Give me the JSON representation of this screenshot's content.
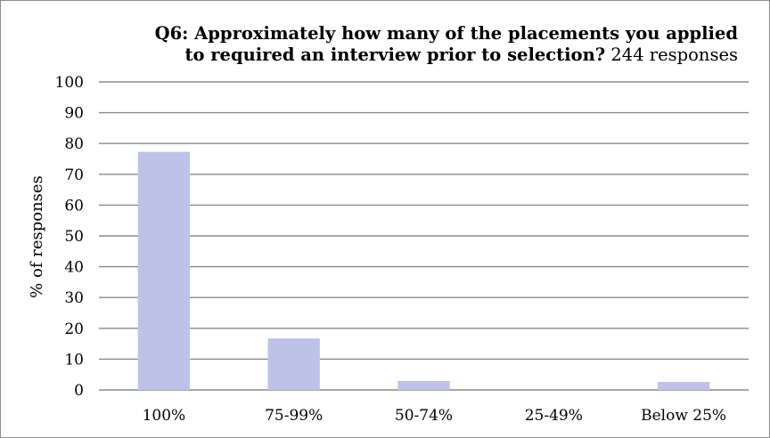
{
  "chart_data": {
    "type": "bar",
    "title": "Q6: Approximately how many of the placements you applied",
    "title_line2": "to required an interview prior to selection?",
    "subtitle": "244 responses",
    "xlabel": "",
    "ylabel": "% of responses",
    "categories": [
      "100%",
      "75-99%",
      "50-74%",
      "25-49%",
      "Below 25%"
    ],
    "values": [
      77.3,
      16.7,
      2.9,
      0,
      2.6
    ],
    "ylim": [
      0,
      100
    ],
    "yticks": [
      0,
      10,
      20,
      30,
      40,
      50,
      60,
      70,
      80,
      90,
      100
    ],
    "grid": true,
    "legend": "none",
    "bar_color": "#bfc2e8",
    "grid_color": "#8a8a8a"
  }
}
